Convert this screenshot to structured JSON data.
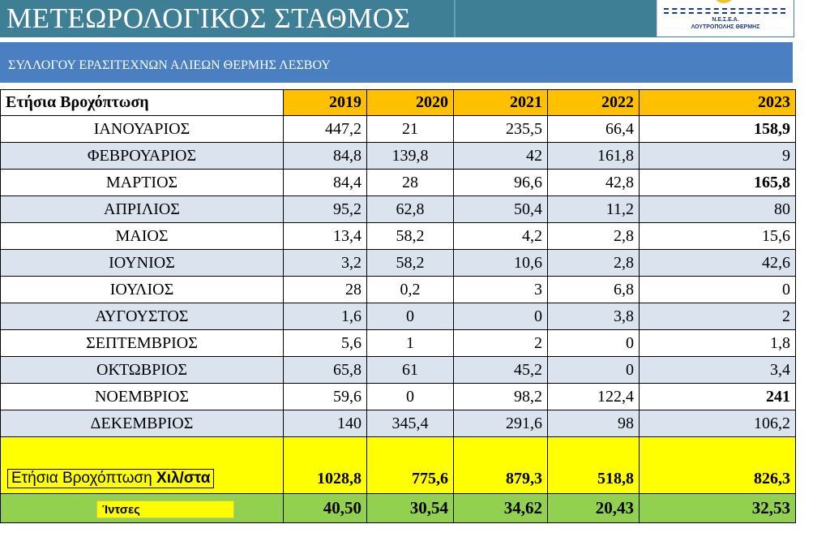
{
  "header": {
    "title": "ΜΕΤΕΩΡΟΛΟΓΙΚΟΣ ΣΤΑΘΜΟΣ",
    "subtitle": "ΣΥΛΛΟΓΟΥ ΕΡΑΣΙΤΕΧΝΩΝ ΑΛΙΕΩΝ  ΘΕΡΜΗΣ ΛΕΣΒΟΥ",
    "logo_line1": "Ν.Ε.Σ.Ε.Α.",
    "logo_line2": "ΛΟΥΤΡΟΠΟΛΗΣ ΘΕΡΜΗΣ"
  },
  "table": {
    "label_header": "Ετήσια Βροχόπτωση",
    "years": [
      "2019",
      "2020",
      "2021",
      "2022",
      "2023"
    ],
    "rows": [
      {
        "month": "ΙΑΝΟΥΑΡΙΟΣ",
        "values": [
          "447,2",
          "21",
          "235,5",
          "66,4",
          "158,9"
        ]
      },
      {
        "month": "ΦΕΒΡΟΥΑΡΙΟΣ",
        "values": [
          "84,8",
          "139,8",
          "42",
          "161,8",
          "9"
        ]
      },
      {
        "month": "ΜΑΡΤΙΟΣ",
        "values": [
          "84,4",
          "28",
          "96,6",
          "42,8",
          "165,8"
        ]
      },
      {
        "month": "ΑΠΡΙΛΙΟΣ",
        "values": [
          "95,2",
          "62,8",
          "50,4",
          "11,2",
          "80"
        ]
      },
      {
        "month": "ΜΑΙΟΣ",
        "values": [
          "13,4",
          "58,2",
          "4,2",
          "2,8",
          "15,6"
        ]
      },
      {
        "month": "ΙΟΥΝΙΟΣ",
        "values": [
          "3,2",
          "58,2",
          "10,6",
          "2,8",
          "42,6"
        ]
      },
      {
        "month": "ΙΟΥΛΙΟΣ",
        "values": [
          "28",
          "0,2",
          "3",
          "6,8",
          "0"
        ]
      },
      {
        "month": "ΑΥΓΟΥΣΤΟΣ",
        "values": [
          "1,6",
          "0",
          "0",
          "3,8",
          "2"
        ]
      },
      {
        "month": "ΣΕΠΤΕΜΒΡΙΟΣ",
        "values": [
          "5,6",
          "1",
          "2",
          "0",
          "1,8"
        ]
      },
      {
        "month": "ΟΚΤΩΒΡΙΟΣ",
        "values": [
          "65,8",
          "61",
          "45,2",
          "0",
          "3,4"
        ]
      },
      {
        "month": "ΝΟΕΜΒΡΙΟΣ",
        "values": [
          "59,6",
          "0",
          "98,2",
          "122,4",
          "241"
        ]
      },
      {
        "month": "ΔΕΚΕΜΒΡΙΟΣ",
        "values": [
          "140",
          "345,4",
          "291,6",
          "98",
          "106,2"
        ]
      }
    ],
    "total": {
      "label_prefix": "Ετήσια Βροχόπτωση ",
      "label_unit": "Χιλ/στα",
      "values": [
        "1028,8",
        "775,6",
        "879,3",
        "518,8",
        "826,3"
      ]
    },
    "inches": {
      "label": "Ίντσες",
      "values": [
        "40,50",
        "30,54",
        "34,62",
        "20,43",
        "32,53"
      ]
    }
  },
  "colors": {
    "title_bar": "#3f7f95",
    "subtitle_bar": "#4a7fc1",
    "year_header": "#ffc000",
    "row_shade": "#dbe3ef",
    "total_row": "#ffff00",
    "inch_row": "#92d050"
  }
}
